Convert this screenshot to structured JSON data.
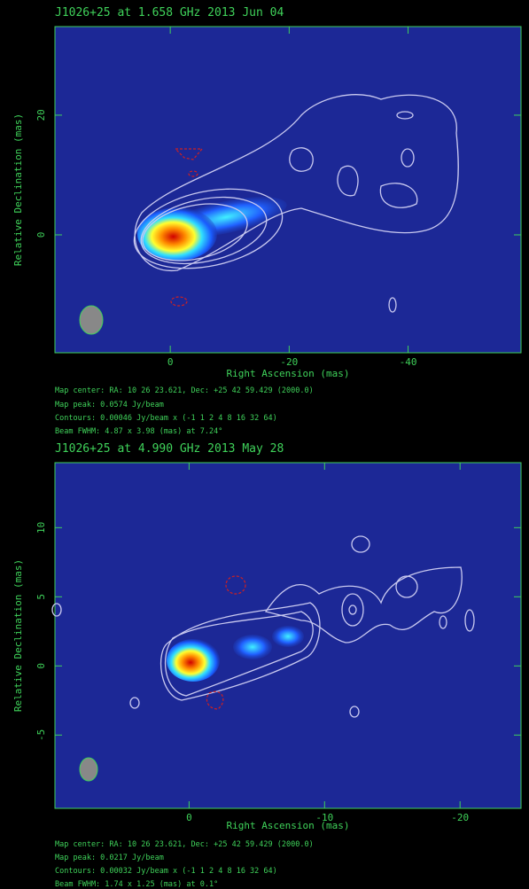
{
  "chart_data": [
    {
      "type": "contour",
      "title": "J1026+25 at 1.658 GHz 2013 Jun 04",
      "xlabel": "Right Ascension  (mas)",
      "ylabel": "Relative Declination  (mas)",
      "xlim": [
        19.4,
        -59
      ],
      "ylim": [
        -19.7,
        34.8
      ],
      "xticks": [
        0,
        -20,
        -40
      ],
      "yticks": [
        0,
        20
      ],
      "annotations": [
        "Map center:  RA: 10 26 23.621,  Dec: +25 42 59.429 (2000.0)",
        "Map peak: 0.0574 Jy/beam",
        "Contours: 0.00046 Jy/beam x (-1 1 2 4 8 16 32 64)",
        "Beam FWHM: 4.87 x 3.98 (mas) at 7.24°"
      ]
    },
    {
      "type": "contour",
      "title": "J1026+25 at 4.990 GHz 2013 May 28",
      "xlabel": "Right Ascension  (mas)",
      "ylabel": "Relative Declination  (mas)",
      "xlim": [
        9.9,
        -24.5
      ],
      "ylim": [
        -10.3,
        14.7
      ],
      "xticks": [
        0,
        -10,
        -20
      ],
      "yticks": [
        -5,
        0,
        5,
        10
      ],
      "annotations": [
        "Map center:  RA: 10 26 23.621,  Dec: +25 42 59.429 (2000.0)",
        "Map peak: 0.0217 Jy/beam",
        "Contours: 0.00032 Jy/beam x (-1 1 2 4 8 16 32 64)",
        "Beam FWHM: 1.74 x 1.25 (mas) at 0.1°"
      ]
    }
  ]
}
